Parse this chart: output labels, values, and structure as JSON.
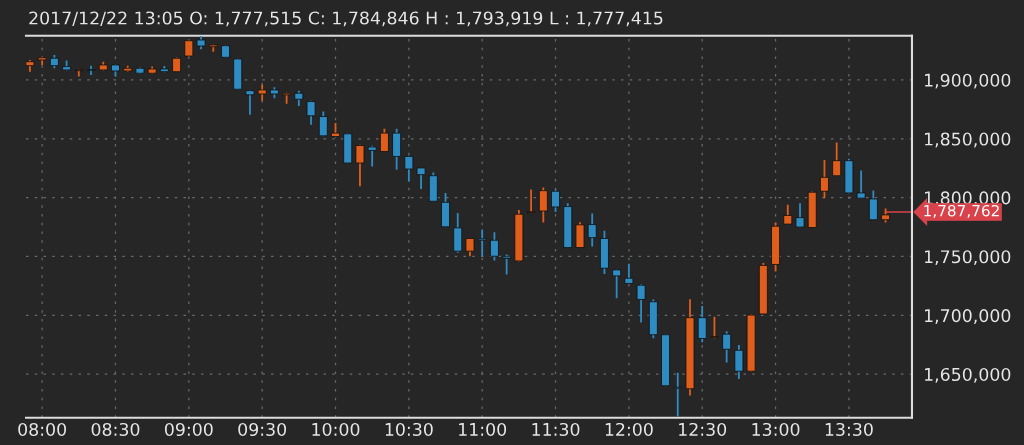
{
  "chart_data": {
    "type": "candlestick",
    "title": "2017/12/22 13:05 O: 1,777,515 C: 1,784,846 H : 1,793,919 L : 1,777,415",
    "x": [
      7.9167,
      8,
      8.0833,
      8.1667,
      8.25,
      8.3333,
      8.4167,
      8.5,
      8.5833,
      8.6667,
      8.75,
      8.8333,
      8.9167,
      9,
      9.0833,
      9.1667,
      9.25,
      9.3333,
      9.4167,
      9.5,
      9.5833,
      9.6667,
      9.75,
      9.8333,
      9.9167,
      10,
      10.0833,
      10.1667,
      10.25,
      10.3333,
      10.4167,
      10.5,
      10.5833,
      10.6667,
      10.75,
      10.8333,
      10.9167,
      11,
      11.0833,
      11.1667,
      11.25,
      11.3333,
      11.4167,
      11.5,
      11.5833,
      11.6667,
      11.75,
      11.8333,
      11.9167,
      12,
      12.0833,
      12.1667,
      12.25,
      12.3333,
      12.4167,
      12.5,
      12.5833,
      12.6667,
      12.75,
      12.8333,
      12.9167,
      13,
      13.0833,
      13.1667,
      13.25,
      13.3333,
      13.4167,
      13.5,
      13.5833,
      13.6667,
      13.75
    ],
    "ohlc": [
      [
        1912100,
        1917000,
        1907000,
        1915500
      ],
      [
        1917000,
        1919700,
        1912700,
        1918900
      ],
      [
        1918400,
        1921200,
        1909900,
        1912100
      ],
      [
        1911300,
        1916400,
        1907900,
        1908500
      ],
      [
        1907900,
        1909100,
        1902800,
        1908700
      ],
      [
        1908700,
        1912100,
        1904200,
        1908200
      ],
      [
        1908500,
        1915500,
        1907900,
        1912700
      ],
      [
        1912700,
        1913100,
        1902800,
        1907600
      ],
      [
        1907600,
        1912100,
        1907000,
        1909900
      ],
      [
        1909900,
        1910600,
        1905100,
        1905700
      ],
      [
        1905700,
        1911300,
        1905100,
        1909300
      ],
      [
        1909300,
        1911900,
        1906500,
        1907000
      ],
      [
        1907000,
        1919100,
        1906800,
        1918400
      ],
      [
        1920300,
        1933900,
        1919700,
        1933300
      ],
      [
        1933900,
        1937300,
        1926000,
        1928800
      ],
      [
        1928200,
        1930100,
        1924000,
        1929700
      ],
      [
        1929100,
        1929700,
        1918600,
        1919200
      ],
      [
        1917800,
        1918200,
        1891500,
        1892100
      ],
      [
        1890900,
        1891500,
        1870300,
        1887300
      ],
      [
        1888100,
        1895800,
        1882200,
        1891500
      ],
      [
        1891500,
        1893800,
        1884500,
        1888100
      ],
      [
        1887300,
        1889000,
        1879700,
        1888700
      ],
      [
        1888700,
        1890900,
        1877900,
        1883600
      ],
      [
        1881600,
        1882200,
        1861900,
        1869500
      ],
      [
        1868900,
        1873100,
        1852100,
        1852500
      ],
      [
        1851900,
        1863300,
        1851700,
        1854800
      ],
      [
        1854200,
        1854700,
        1829100,
        1829400
      ],
      [
        1829400,
        1844900,
        1809600,
        1844300
      ],
      [
        1843000,
        1844100,
        1826500,
        1840100
      ],
      [
        1839200,
        1858500,
        1838900,
        1854800
      ],
      [
        1854800,
        1858500,
        1823700,
        1835000
      ],
      [
        1835000,
        1835600,
        1813800,
        1824300
      ],
      [
        1825200,
        1825400,
        1807400,
        1819500
      ],
      [
        1818600,
        1821400,
        1796600,
        1796900
      ],
      [
        1796000,
        1804000,
        1774800,
        1775200
      ],
      [
        1774300,
        1787000,
        1753100,
        1754500
      ],
      [
        1754500,
        1765700,
        1750200,
        1765300
      ],
      [
        1765000,
        1772900,
        1750200,
        1763800
      ],
      [
        1763800,
        1770600,
        1746600,
        1750200
      ],
      [
        1749700,
        1751700,
        1734700,
        1748300
      ],
      [
        1746200,
        1789500,
        1745800,
        1785900
      ],
      [
        1787300,
        1806800,
        1786900,
        1788100
      ],
      [
        1788600,
        1808500,
        1778800,
        1805900
      ],
      [
        1805400,
        1806800,
        1787700,
        1792100
      ],
      [
        1792400,
        1795300,
        1757200,
        1757600
      ],
      [
        1757600,
        1779100,
        1757600,
        1776900
      ],
      [
        1777100,
        1786500,
        1758500,
        1766000
      ],
      [
        1765300,
        1771800,
        1735000,
        1740000
      ],
      [
        1738600,
        1739000,
        1714400,
        1733500
      ],
      [
        1731500,
        1743900,
        1727100,
        1727100
      ],
      [
        1725600,
        1726300,
        1693800,
        1713500
      ],
      [
        1711500,
        1713500,
        1680600,
        1683500
      ],
      [
        1683500,
        1683900,
        1639800,
        1640200
      ],
      [
        1638900,
        1651200,
        1614000,
        1638100
      ],
      [
        1637600,
        1713700,
        1631800,
        1698000
      ],
      [
        1698000,
        1708000,
        1677100,
        1680300
      ],
      [
        1681200,
        1698800,
        1680500,
        1682000
      ],
      [
        1684000,
        1686400,
        1659900,
        1671200
      ],
      [
        1670300,
        1674700,
        1645800,
        1652500
      ],
      [
        1652500,
        1700800,
        1652100,
        1700200
      ],
      [
        1701200,
        1744500,
        1701200,
        1742400
      ],
      [
        1743200,
        1778800,
        1737300,
        1775700
      ],
      [
        1777515,
        1793919,
        1777415,
        1784846
      ],
      [
        1783000,
        1795300,
        1774600,
        1775000
      ],
      [
        1774600,
        1805100,
        1774600,
        1804600
      ],
      [
        1805400,
        1831900,
        1799500,
        1817200
      ],
      [
        1818600,
        1846800,
        1818600,
        1831400
      ],
      [
        1831400,
        1833000,
        1803400,
        1804000
      ],
      [
        1804000,
        1823100,
        1799500,
        1799500
      ],
      [
        1798900,
        1806000,
        1780900,
        1781200
      ],
      [
        1781200,
        1790700,
        1778800,
        1785300
      ]
    ],
    "colors": [
      "#e05e1c",
      "#e05e1c",
      "#2f8cc2",
      "#2f8cc2",
      "#e05e1c",
      "#2f8cc2",
      "#e05e1c",
      "#2f8cc2",
      "#e05e1c",
      "#2f8cc2",
      "#e05e1c",
      "#2f8cc2",
      "#e05e1c",
      "#e05e1c",
      "#2f8cc2",
      "#e05e1c",
      "#2f8cc2",
      "#2f8cc2",
      "#2f8cc2",
      "#e05e1c",
      "#2f8cc2",
      "#e05e1c",
      "#2f8cc2",
      "#2f8cc2",
      "#2f8cc2",
      "#e05e1c",
      "#2f8cc2",
      "#e05e1c",
      "#2f8cc2",
      "#e05e1c",
      "#2f8cc2",
      "#2f8cc2",
      "#2f8cc2",
      "#2f8cc2",
      "#2f8cc2",
      "#2f8cc2",
      "#e05e1c",
      "#2f8cc2",
      "#2f8cc2",
      "#2f8cc2",
      "#e05e1c",
      "#e05e1c",
      "#e05e1c",
      "#2f8cc2",
      "#2f8cc2",
      "#e05e1c",
      "#2f8cc2",
      "#2f8cc2",
      "#2f8cc2",
      "#2f8cc2",
      "#2f8cc2",
      "#2f8cc2",
      "#2f8cc2",
      "#2f8cc2",
      "#e05e1c",
      "#2f8cc2",
      "#e05e1c",
      "#2f8cc2",
      "#2f8cc2",
      "#e05e1c",
      "#e05e1c",
      "#e05e1c",
      "#e05e1c",
      "#2f8cc2",
      "#e05e1c",
      "#e05e1c",
      "#e05e1c",
      "#2f8cc2",
      "#2f8cc2",
      "#2f8cc2",
      "#e05e1c"
    ],
    "xlim": [
      7.89,
      13.93
    ],
    "xticks": [
      {
        "value": 8,
        "label": "08:00"
      },
      {
        "value": 8.5,
        "label": "08:30"
      },
      {
        "value": 9,
        "label": "09:00"
      },
      {
        "value": 9.5,
        "label": "09:30"
      },
      {
        "value": 10,
        "label": "10:00"
      },
      {
        "value": 10.5,
        "label": "10:30"
      },
      {
        "value": 11,
        "label": "11:00"
      },
      {
        "value": 11.5,
        "label": "11:30"
      },
      {
        "value": 12,
        "label": "12:00"
      },
      {
        "value": 12.5,
        "label": "12:30"
      },
      {
        "value": 13,
        "label": "13:00"
      },
      {
        "value": 13.5,
        "label": "13:30"
      }
    ],
    "ylim": [
      1613000,
      1937500
    ],
    "yticks": [
      {
        "value": 1650000,
        "label": "1,650,000"
      },
      {
        "value": 1700000,
        "label": "1,700,000"
      },
      {
        "value": 1750000,
        "label": "1,750,000"
      },
      {
        "value": 1800000,
        "label": "1,800,000"
      },
      {
        "value": 1850000,
        "label": "1,850,000"
      },
      {
        "value": 1900000,
        "label": "1,900,000"
      }
    ],
    "grid": true,
    "ref_lines": [
      {
        "axis": "y",
        "value": 1787762,
        "label": "1,787,762",
        "color": "#d8434b"
      }
    ]
  }
}
